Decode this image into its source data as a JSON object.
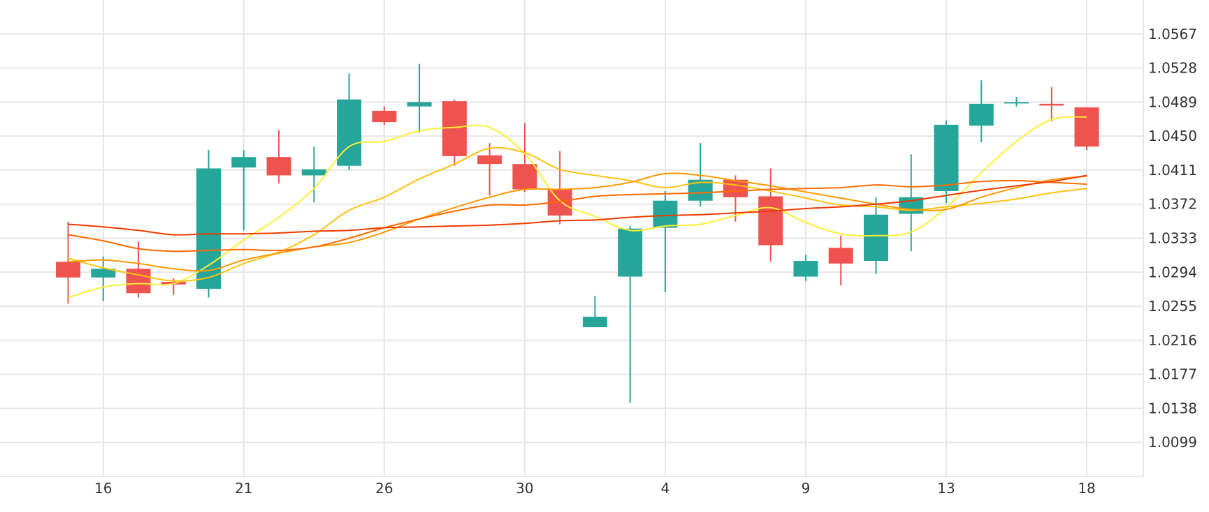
{
  "chart_data": {
    "type": "candlestick",
    "title": "",
    "xlabel": "",
    "ylabel": "",
    "ylim": [
      1.006,
      1.0606
    ],
    "grid": true,
    "y_ticks": [
      "1.0567",
      "1.0528",
      "1.0489",
      "1.0450",
      "1.0411",
      "1.0372",
      "1.0333",
      "1.0294",
      "1.0255",
      "1.0216",
      "1.0177",
      "1.0138",
      "1.0099"
    ],
    "x_ticks": [
      {
        "label": "16",
        "index": 1
      },
      {
        "label": "21",
        "index": 5
      },
      {
        "label": "26",
        "index": 9
      },
      {
        "label": "30",
        "index": 13
      },
      {
        "label": "4",
        "index": 17
      },
      {
        "label": "9",
        "index": 21
      },
      {
        "label": "13",
        "index": 25
      },
      {
        "label": "18",
        "index": 29
      }
    ],
    "colors": {
      "up": "#26a69a",
      "down": "#ef5350"
    },
    "candles": [
      {
        "open": 1.0306,
        "high": 1.0352,
        "low": 1.0258,
        "close": 1.0288
      },
      {
        "open": 1.0288,
        "high": 1.0312,
        "low": 1.0261,
        "close": 1.0298
      },
      {
        "open": 1.0298,
        "high": 1.0329,
        "low": 1.0265,
        "close": 1.027
      },
      {
        "open": 1.0283,
        "high": 1.0287,
        "low": 1.0268,
        "close": 1.028
      },
      {
        "open": 1.0275,
        "high": 1.0434,
        "low": 1.0265,
        "close": 1.0413
      },
      {
        "open": 1.0414,
        "high": 1.0434,
        "low": 1.0342,
        "close": 1.0426
      },
      {
        "open": 1.0426,
        "high": 1.0457,
        "low": 1.0396,
        "close": 1.0405
      },
      {
        "open": 1.0405,
        "high": 1.0438,
        "low": 1.0374,
        "close": 1.0412
      },
      {
        "open": 1.0416,
        "high": 1.0522,
        "low": 1.0411,
        "close": 1.0492
      },
      {
        "open": 1.0479,
        "high": 1.0484,
        "low": 1.0463,
        "close": 1.0466
      },
      {
        "open": 1.0484,
        "high": 1.0533,
        "low": 1.0454,
        "close": 1.0489
      },
      {
        "open": 1.049,
        "high": 1.0492,
        "low": 1.0416,
        "close": 1.0427
      },
      {
        "open": 1.0428,
        "high": 1.0442,
        "low": 1.0382,
        "close": 1.0418
      },
      {
        "open": 1.0418,
        "high": 1.0465,
        "low": 1.0386,
        "close": 1.0389
      },
      {
        "open": 1.0389,
        "high": 1.0433,
        "low": 1.0349,
        "close": 1.0359
      },
      {
        "open": 1.0231,
        "high": 1.0267,
        "low": 1.0233,
        "close": 1.0243
      },
      {
        "open": 1.0289,
        "high": 1.0347,
        "low": 1.0144,
        "close": 1.0344
      },
      {
        "open": 1.0345,
        "high": 1.0387,
        "low": 1.0271,
        "close": 1.0376
      },
      {
        "open": 1.0376,
        "high": 1.0442,
        "low": 1.0369,
        "close": 1.04
      },
      {
        "open": 1.04,
        "high": 1.0405,
        "low": 1.0352,
        "close": 1.038
      },
      {
        "open": 1.0381,
        "high": 1.0413,
        "low": 1.0306,
        "close": 1.0325
      },
      {
        "open": 1.0289,
        "high": 1.0314,
        "low": 1.0284,
        "close": 1.0307
      },
      {
        "open": 1.0322,
        "high": 1.0336,
        "low": 1.0279,
        "close": 1.0304
      },
      {
        "open": 1.0307,
        "high": 1.038,
        "low": 1.0292,
        "close": 1.036
      },
      {
        "open": 1.0361,
        "high": 1.0429,
        "low": 1.0318,
        "close": 1.038
      },
      {
        "open": 1.0387,
        "high": 1.0468,
        "low": 1.0373,
        "close": 1.0463
      },
      {
        "open": 1.0462,
        "high": 1.0514,
        "low": 1.0443,
        "close": 1.0487
      },
      {
        "open": 1.0488,
        "high": 1.0495,
        "low": 1.0484,
        "close": 1.0489
      },
      {
        "open": 1.0487,
        "high": 1.0506,
        "low": 1.0467,
        "close": 1.0485
      },
      {
        "open": 1.0483,
        "high": 1.0483,
        "low": 1.0434,
        "close": 1.0438
      }
    ],
    "series": [
      {
        "color": "#ffee33",
        "values": [
          1.0265,
          1.0277,
          1.0281,
          1.0281,
          1.0302,
          1.0331,
          1.0357,
          1.039,
          1.0438,
          1.0444,
          1.0456,
          1.046,
          1.046,
          1.043,
          1.0376,
          1.0358,
          1.0342,
          1.0347,
          1.0349,
          1.0359,
          1.0368,
          1.0351,
          1.0338,
          1.0336,
          1.034,
          1.0368,
          1.0408,
          1.0444,
          1.0469,
          1.0472
        ]
      },
      {
        "color": "#ffc20e",
        "values": [
          1.031,
          1.0299,
          1.0291,
          1.0284,
          1.0288,
          1.0304,
          1.0317,
          1.0337,
          1.0365,
          1.038,
          1.0401,
          1.0418,
          1.0436,
          1.0431,
          1.0412,
          1.0405,
          1.0399,
          1.0391,
          1.0397,
          1.0394,
          1.0387,
          1.0379,
          1.0371,
          1.0369,
          1.0365,
          1.0369,
          1.0373,
          1.0378,
          1.0385,
          1.039
        ]
      },
      {
        "color": "#ff9900",
        "values": [
          1.0306,
          1.0308,
          1.0304,
          1.0298,
          1.0296,
          1.0308,
          1.0316,
          1.0323,
          1.0328,
          1.034,
          1.0355,
          1.0368,
          1.038,
          1.0389,
          1.0389,
          1.0391,
          1.0397,
          1.0407,
          1.0405,
          1.0399,
          1.0393,
          1.0386,
          1.0379,
          1.0372,
          1.0366,
          1.0366,
          1.038,
          1.0391,
          1.04,
          1.0404
        ]
      },
      {
        "color": "#ff6a00",
        "values": [
          1.0337,
          1.033,
          1.0321,
          1.0318,
          1.0319,
          1.032,
          1.0319,
          1.0323,
          1.0333,
          1.0345,
          1.0355,
          1.0364,
          1.0371,
          1.0371,
          1.0375,
          1.0381,
          1.0383,
          1.0384,
          1.0385,
          1.0387,
          1.0389,
          1.039,
          1.0391,
          1.0394,
          1.0392,
          1.0394,
          1.0398,
          1.0399,
          1.0397,
          1.0395
        ]
      },
      {
        "color": "#ee3a00",
        "values": [
          1.0349,
          1.0346,
          1.0342,
          1.0337,
          1.0338,
          1.0338,
          1.0339,
          1.0341,
          1.0342,
          1.0345,
          1.0346,
          1.0347,
          1.0348,
          1.035,
          1.0353,
          1.0354,
          1.0357,
          1.0359,
          1.036,
          1.0362,
          1.0364,
          1.0367,
          1.0369,
          1.0372,
          1.0376,
          1.0382,
          1.0388,
          1.0393,
          1.0398,
          1.0405
        ]
      }
    ]
  }
}
